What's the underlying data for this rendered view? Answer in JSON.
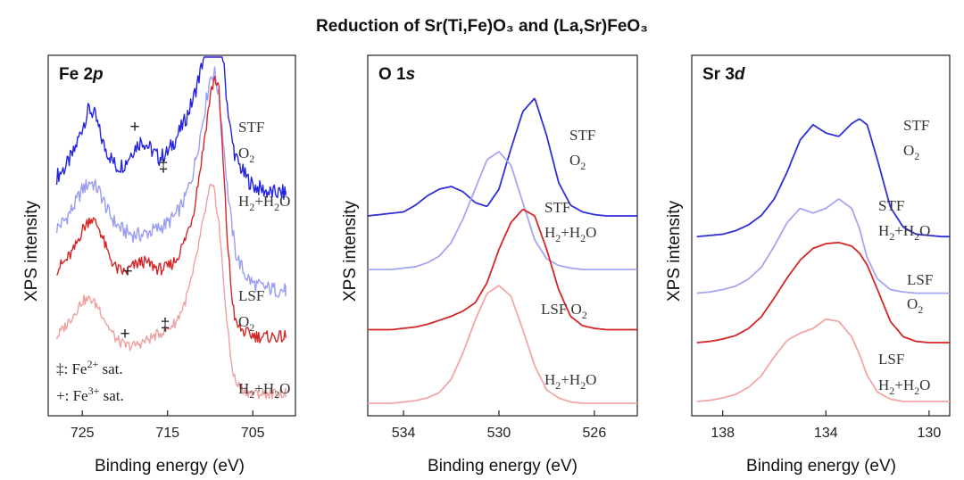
{
  "chart_data": {
    "type": "line",
    "title": "Reduction of Sr(Ti,Fe)O₃ and (La,Sr)FeO₃",
    "ylabel": "XPS intensity",
    "xlabel": "Binding energy (eV)",
    "panels": [
      {
        "id": "fe2p",
        "title_main": "Fe 2",
        "title_italic": "p",
        "xlim": [
          729,
          700
        ],
        "xticks": [
          {
            "v": 725,
            "t": "725"
          },
          {
            "v": 715,
            "t": "715"
          },
          {
            "v": 705,
            "t": "705"
          }
        ],
        "series": [
          {
            "name": "STF O₂",
            "color": "#2323e0",
            "noise": 0.045,
            "offset": 1.0,
            "scale": 1.22,
            "x": [
              728,
              727,
              726,
              725,
              724.2,
              723.5,
              722.5,
              721,
              720,
              719,
              718,
              717,
              716,
              715,
              714,
              713,
              712,
              711,
              710,
              709.5,
              709,
              708.5,
              708,
              707.5,
              707,
              706,
              705,
              704,
              703,
              702,
              701
            ],
            "y": [
              0.45,
              0.5,
              0.58,
              0.72,
              0.82,
              0.78,
              0.62,
              0.5,
              0.52,
              0.6,
              0.65,
              0.6,
              0.55,
              0.58,
              0.66,
              0.75,
              0.87,
              1.05,
              1.3,
              1.4,
              1.35,
              1.1,
              0.85,
              0.66,
              0.55,
              0.46,
              0.4,
              0.38,
              0.36,
              0.36,
              0.36
            ]
          },
          {
            "name": "STF H₂+H₂O",
            "color": "#9a9ef2",
            "noise": 0.045,
            "offset": 0.7,
            "scale": 1.12,
            "x": [
              728,
              727,
              726,
              725,
              724,
              723,
              722,
              721,
              720,
              719,
              718,
              717,
              716,
              715,
              714,
              713,
              712,
              711,
              710,
              709.5,
              709,
              708.5,
              708,
              707.5,
              707,
              706,
              705,
              704,
              703,
              702,
              701
            ],
            "y": [
              0.45,
              0.5,
              0.58,
              0.68,
              0.73,
              0.67,
              0.55,
              0.47,
              0.43,
              0.41,
              0.41,
              0.43,
              0.45,
              0.48,
              0.53,
              0.62,
              0.78,
              1.05,
              1.35,
              1.38,
              1.25,
              1.0,
              0.7,
              0.48,
              0.3,
              0.18,
              0.12,
              0.1,
              0.09,
              0.08,
              0.08
            ]
          },
          {
            "name": "LSF O₂",
            "color": "#d42626",
            "noise": 0.04,
            "offset": 0.3,
            "scale": 1.05,
            "x": [
              728,
              727,
              726,
              725,
              724,
              723,
              722,
              721,
              720,
              719,
              718,
              717,
              716,
              715,
              714,
              713,
              712,
              711,
              710,
              709.5,
              709,
              708.5,
              708,
              707.5,
              707,
              706,
              705,
              704,
              703,
              702,
              701
            ],
            "y": [
              0.6,
              0.65,
              0.72,
              0.85,
              0.93,
              0.86,
              0.7,
              0.6,
              0.58,
              0.62,
              0.65,
              0.63,
              0.6,
              0.61,
              0.66,
              0.78,
              0.95,
              1.3,
              1.7,
              1.82,
              1.75,
              1.3,
              0.8,
              0.45,
              0.25,
              0.2,
              0.18,
              0.17,
              0.17,
              0.17,
              0.17
            ]
          },
          {
            "name": "LSF H₂+H₂O",
            "color": "#f0a0a0",
            "noise": 0.035,
            "offset": 0.0,
            "scale": 1.0,
            "x": [
              728,
              727,
              726,
              725,
              724,
              723,
              722,
              721,
              720,
              719,
              718,
              717,
              716,
              715,
              714,
              713,
              712,
              711,
              710,
              709.5,
              709,
              708.5,
              708,
              707.5,
              707,
              706,
              705,
              704,
              703,
              702,
              701
            ],
            "y": [
              0.48,
              0.55,
              0.63,
              0.72,
              0.73,
              0.67,
              0.55,
              0.46,
              0.42,
              0.42,
              0.44,
              0.47,
              0.5,
              0.53,
              0.58,
              0.7,
              0.9,
              1.2,
              1.48,
              1.45,
              1.25,
              0.9,
              0.55,
              0.3,
              0.17,
              0.12,
              0.1,
              0.1,
              0.1,
              0.1,
              0.1
            ]
          }
        ],
        "labels": [
          {
            "text_main": "STF",
            "sub": ""
          },
          {
            "text_main": "O",
            "sub": "2"
          },
          {
            "text_main": "H",
            "sub": "2",
            "tail": "+H",
            "sub2": "2",
            "tail2": "O"
          },
          {
            "text_main": "LSF",
            "sub": ""
          },
          {
            "text_main": "O",
            "sub": "2"
          },
          {
            "text_main": "H",
            "sub": "2",
            "tail": "+H",
            "sub2": "2",
            "tail2": "O"
          }
        ],
        "markers": [
          "+",
          "‡",
          "+",
          "+",
          "‡"
        ],
        "legend": [
          {
            "sym": "‡",
            "text": ": Fe",
            "sup": "2+",
            "tail": " sat."
          },
          {
            "sym": "+",
            "text": ": Fe",
            "sup": "3+",
            "tail": " sat."
          }
        ]
      },
      {
        "id": "o1s",
        "title_main": "O 1",
        "title_italic": "s",
        "xlim": [
          535.5,
          524.2
        ],
        "xticks": [
          {
            "v": 534,
            "t": "534"
          },
          {
            "v": 530,
            "t": "530"
          },
          {
            "v": 526,
            "t": "526"
          }
        ],
        "series": [
          {
            "name": "STF O₂",
            "color": "#2f2fd8",
            "noise": 0.0,
            "offset": 1.4,
            "scale": 1.0,
            "x": [
              535.5,
              535,
              534.5,
              534,
              533.5,
              533,
              532.5,
              532,
              531.5,
              531,
              530.5,
              530,
              529.5,
              529,
              528.5,
              528,
              527.5,
              527,
              526.5,
              526,
              525.5,
              525,
              524.2
            ],
            "y": [
              0.0,
              0.01,
              0.02,
              0.03,
              0.08,
              0.15,
              0.2,
              0.22,
              0.18,
              0.1,
              0.07,
              0.2,
              0.5,
              0.78,
              0.88,
              0.6,
              0.25,
              0.08,
              0.03,
              0.01,
              0.0,
              0.0,
              0.0
            ]
          },
          {
            "name": "STF H₂+H₂O",
            "color": "#a4a6f0",
            "noise": 0.0,
            "offset": 1.0,
            "scale": 1.0,
            "x": [
              535.5,
              535,
              534.5,
              534,
              533.5,
              533,
              532.5,
              532,
              531.5,
              531,
              530.5,
              530,
              529.5,
              529,
              528.5,
              528,
              527.5,
              527,
              526.5,
              526,
              525.5,
              525,
              524.2
            ],
            "y": [
              0.0,
              0.0,
              0.0,
              0.01,
              0.02,
              0.05,
              0.1,
              0.2,
              0.38,
              0.6,
              0.82,
              0.88,
              0.78,
              0.5,
              0.22,
              0.08,
              0.03,
              0.01,
              0.0,
              0.0,
              0.0,
              0.0,
              0.0
            ]
          },
          {
            "name": "LSF O₂",
            "color": "#d42626",
            "noise": 0.0,
            "offset": 0.55,
            "scale": 1.0,
            "x": [
              535.5,
              535,
              534.5,
              534,
              533.5,
              533,
              532.5,
              532,
              531.5,
              531,
              530.5,
              530,
              529.5,
              529,
              528.5,
              528,
              527.5,
              527,
              526.5,
              526,
              525.5,
              525,
              524.2
            ],
            "y": [
              0.0,
              0.0,
              0.0,
              0.01,
              0.02,
              0.04,
              0.07,
              0.1,
              0.14,
              0.2,
              0.35,
              0.6,
              0.8,
              0.9,
              0.85,
              0.6,
              0.3,
              0.1,
              0.03,
              0.01,
              0.0,
              0.0,
              0.0
            ]
          },
          {
            "name": "LSF H₂+H₂O",
            "color": "#f2a6a6",
            "noise": 0.0,
            "offset": 0.0,
            "scale": 1.0,
            "x": [
              535.5,
              535,
              534.5,
              534,
              533.5,
              533,
              532.5,
              532,
              531.5,
              531,
              530.5,
              530,
              529.5,
              529,
              528.5,
              528,
              527.5,
              527,
              526.5,
              526,
              525.5,
              525,
              524.2
            ],
            "y": [
              0.0,
              0.0,
              0.0,
              0.01,
              0.02,
              0.04,
              0.08,
              0.18,
              0.38,
              0.62,
              0.82,
              0.88,
              0.8,
              0.55,
              0.28,
              0.1,
              0.04,
              0.01,
              0.0,
              0.0,
              0.0,
              0.0,
              0.0
            ]
          }
        ],
        "labels": [
          {
            "text_main": "STF",
            "sub": ""
          },
          {
            "text_main": "O",
            "sub": "2"
          },
          {
            "text_main": "STF",
            "sub": ""
          },
          {
            "text_main": "H",
            "sub": "2",
            "tail": "+H",
            "sub2": "2",
            "tail2": "O"
          },
          {
            "text_main": "LSF O",
            "sub": "2"
          },
          {
            "text_main": "H",
            "sub": "2",
            "tail": "+H",
            "sub2": "2",
            "tail2": "O"
          }
        ]
      },
      {
        "id": "sr3d",
        "title_main": "Sr 3",
        "title_italic": "d",
        "xlim": [
          139.2,
          129.2
        ],
        "xticks": [
          {
            "v": 138,
            "t": "138"
          },
          {
            "v": 134,
            "t": "134"
          },
          {
            "v": 130,
            "t": "130"
          }
        ],
        "series": [
          {
            "name": "STF O₂",
            "color": "#2f2fd8",
            "noise": 0.0,
            "offset": 1.4,
            "scale": 1.0,
            "x": [
              139,
              138.5,
              138,
              137.5,
              137,
              136.5,
              136,
              135.5,
              135,
              134.5,
              134,
              133.5,
              133,
              132.7,
              132.4,
              132,
              131.5,
              131,
              130.5,
              130,
              129.5,
              129.2
            ],
            "y": [
              0.0,
              0.01,
              0.02,
              0.05,
              0.1,
              0.18,
              0.32,
              0.55,
              0.82,
              0.95,
              0.88,
              0.85,
              0.96,
              1.0,
              0.95,
              0.65,
              0.25,
              0.08,
              0.02,
              0.01,
              0.0,
              0.0
            ]
          },
          {
            "name": "STF H₂+H₂O",
            "color": "#a4a6f0",
            "noise": 0.0,
            "offset": 0.92,
            "scale": 1.0,
            "x": [
              139,
              138.5,
              138,
              137.5,
              137,
              136.5,
              136,
              135.5,
              135,
              134.5,
              134,
              133.5,
              133,
              132.7,
              132.4,
              132,
              131.5,
              131,
              130.5,
              130,
              129.5,
              129.2
            ],
            "y": [
              0.0,
              0.01,
              0.03,
              0.06,
              0.12,
              0.22,
              0.4,
              0.6,
              0.72,
              0.68,
              0.72,
              0.8,
              0.72,
              0.55,
              0.3,
              0.12,
              0.03,
              0.01,
              0.0,
              0.0,
              0.0,
              0.0
            ]
          },
          {
            "name": "LSF O₂",
            "color": "#d42626",
            "noise": 0.0,
            "offset": 0.5,
            "scale": 1.0,
            "x": [
              139,
              138.5,
              138,
              137.5,
              137,
              136.5,
              136,
              135.5,
              135,
              134.5,
              134,
              133.5,
              133,
              132.7,
              132.4,
              132,
              131.5,
              131,
              130.5,
              130,
              129.5,
              129.2
            ],
            "y": [
              0.0,
              0.01,
              0.03,
              0.06,
              0.12,
              0.22,
              0.38,
              0.55,
              0.7,
              0.8,
              0.84,
              0.85,
              0.82,
              0.76,
              0.66,
              0.45,
              0.18,
              0.05,
              0.01,
              0.0,
              0.0,
              0.0
            ]
          },
          {
            "name": "LSF H₂+H₂O",
            "color": "#f2a6a6",
            "noise": 0.0,
            "offset": 0.0,
            "scale": 1.0,
            "x": [
              139,
              138.5,
              138,
              137.5,
              137,
              136.5,
              136,
              135.5,
              135,
              134.5,
              134,
              133.5,
              133,
              132.7,
              132.4,
              132,
              131.5,
              131,
              130.5,
              130,
              129.5,
              129.2
            ],
            "y": [
              0.0,
              0.01,
              0.03,
              0.06,
              0.12,
              0.22,
              0.38,
              0.52,
              0.58,
              0.62,
              0.7,
              0.68,
              0.55,
              0.4,
              0.22,
              0.08,
              0.02,
              0.0,
              0.0,
              0.0,
              0.0,
              0.0
            ]
          }
        ],
        "labels": [
          {
            "text_main": "STF",
            "sub": ""
          },
          {
            "text_main": "O",
            "sub": "2"
          },
          {
            "text_main": "STF",
            "sub": ""
          },
          {
            "text_main": "H",
            "sub": "2",
            "tail": "+H",
            "sub2": "2",
            "tail2": "O"
          },
          {
            "text_main": "LSF",
            "sub": ""
          },
          {
            "text_main": "O",
            "sub": "2"
          },
          {
            "text_main": "LSF",
            "sub": ""
          },
          {
            "text_main": "H",
            "sub": "2",
            "tail": "+H",
            "sub2": "2",
            "tail2": "O"
          }
        ]
      }
    ]
  }
}
